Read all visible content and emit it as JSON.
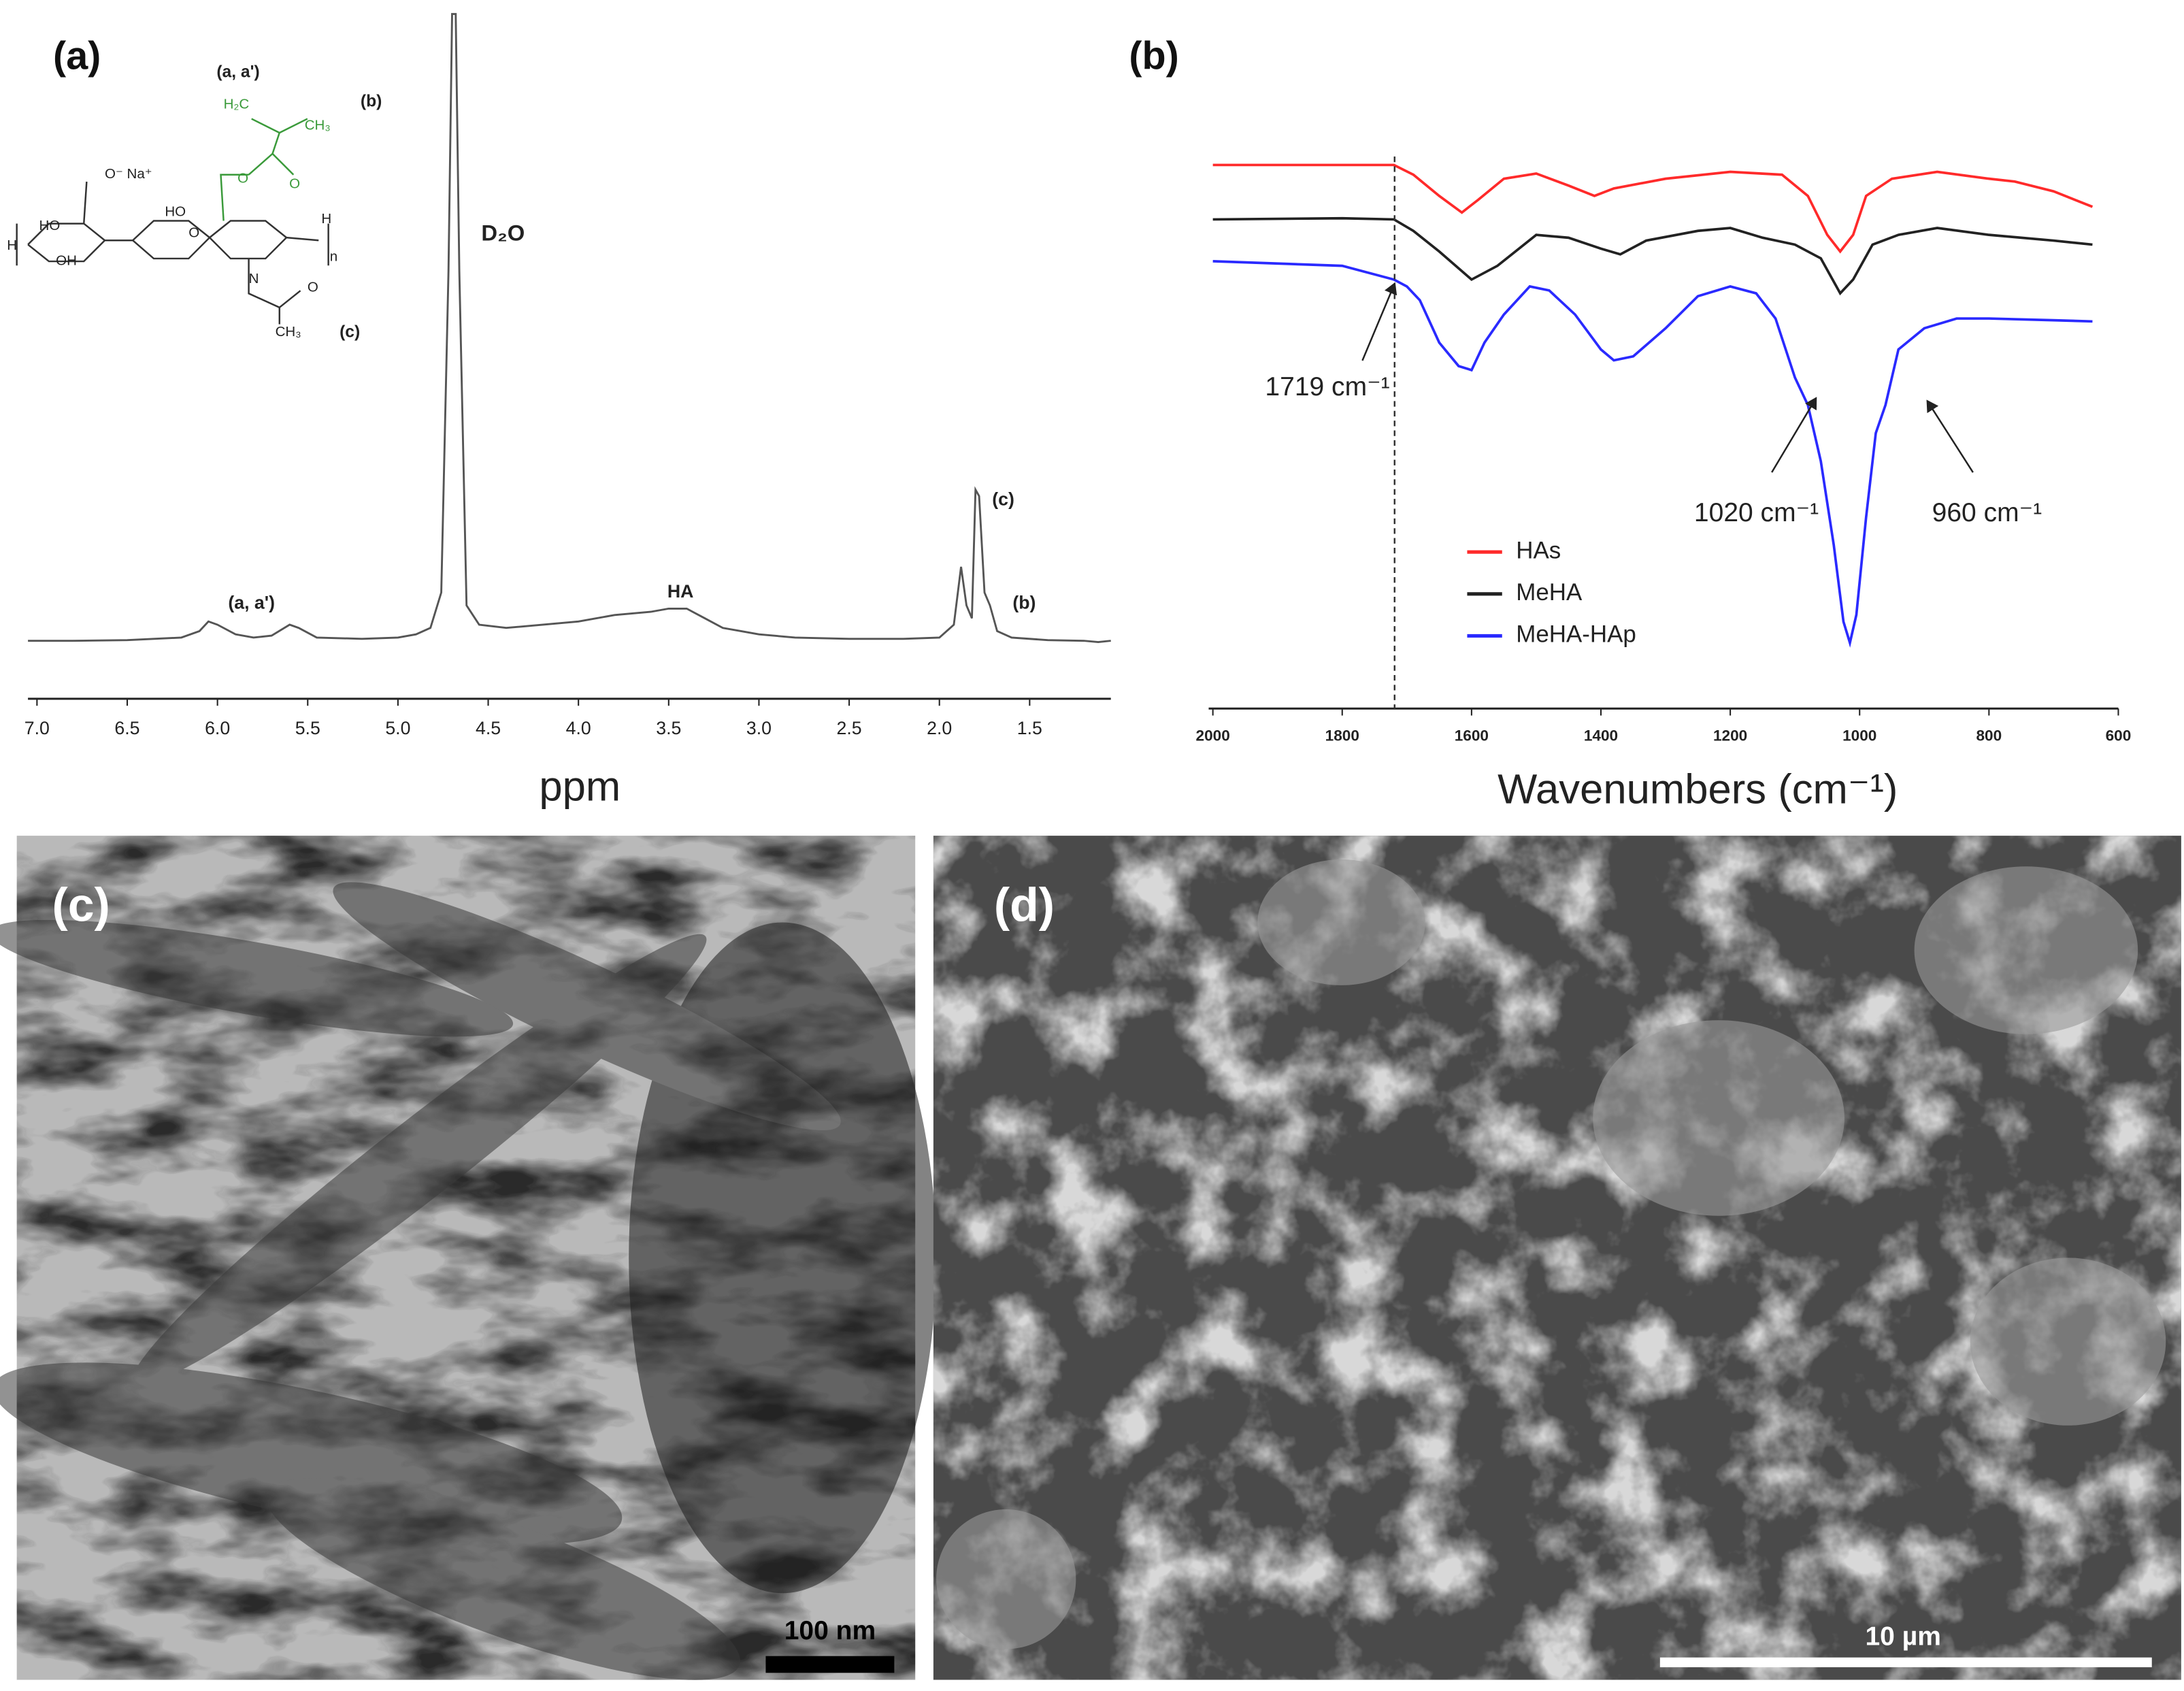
{
  "chart_data": [
    {
      "type": "line",
      "panel_label": "(a)",
      "x_label": "ppm",
      "xlim": [
        7.05,
        1.05
      ],
      "xticks": [
        {
          "value": 7,
          "label": "7.0"
        },
        6.5,
        {
          "value": 6,
          "label": "6.0"
        },
        5.5,
        {
          "value": 5,
          "label": "5.0"
        },
        4.5,
        {
          "value": 4,
          "label": "4.0"
        },
        3.5,
        {
          "value": 3,
          "label": "3.0"
        },
        2.5,
        {
          "value": 2,
          "label": "2.0"
        },
        1.5
      ],
      "ylim": [
        0,
        100
      ],
      "x": [
        7.05,
        6.8,
        6.5,
        6.2,
        6.1,
        6.05,
        6.0,
        5.9,
        5.8,
        5.7,
        5.6,
        5.55,
        5.45,
        5.2,
        5.0,
        4.9,
        4.82,
        4.76,
        4.72,
        4.7,
        4.68,
        4.66,
        4.62,
        4.55,
        4.4,
        4.2,
        4.0,
        3.8,
        3.6,
        3.5,
        3.4,
        3.3,
        3.2,
        3.1,
        3.0,
        2.8,
        2.5,
        2.2,
        2.0,
        1.92,
        1.88,
        1.85,
        1.82,
        1.8,
        1.78,
        1.75,
        1.72,
        1.68,
        1.6,
        1.4,
        1.2,
        1.12,
        1.05
      ],
      "series": [
        {
          "color": "#555555",
          "values": [
            2.5,
            2.5,
            2.6,
            3,
            4,
            5.5,
            5,
            3.5,
            3,
            3.3,
            5,
            4.5,
            3,
            2.8,
            3,
            3.5,
            4.5,
            10,
            60,
            100,
            100,
            60,
            8,
            5,
            4.5,
            5,
            5.5,
            6.5,
            7,
            7.5,
            7.5,
            6,
            4.5,
            4,
            3.5,
            3,
            2.8,
            2.8,
            3,
            5,
            14,
            8,
            6,
            26,
            25,
            10,
            8,
            4,
            3,
            2.6,
            2.5,
            2.3,
            2.5
          ]
        }
      ],
      "annotations": [
        "(a, a')",
        "HA",
        "(c)",
        "(b)",
        "D₂O"
      ],
      "structure_labels": [
        {
          "text": "(a, a')",
          "color": "#222222"
        },
        {
          "text": "(b)",
          "color": "#222222"
        },
        {
          "text": "H₂C",
          "color": "#3a9a3a"
        },
        {
          "text": "CH₃",
          "color": "#3a9a3a"
        },
        {
          "text": "O",
          "color": "#3a9a3a"
        },
        {
          "text": "O",
          "color": "#3a9a3a"
        },
        {
          "text": "O⁻ Na⁺",
          "color": "#222222"
        },
        {
          "text": "HO",
          "color": "#222222"
        },
        {
          "text": "OH",
          "color": "#222222"
        },
        {
          "text": "HO",
          "color": "#222222"
        },
        {
          "text": "O",
          "color": "#222222"
        },
        {
          "text": "N",
          "color": "#222222"
        },
        {
          "text": "O",
          "color": "#222222"
        },
        {
          "text": "CH₃",
          "color": "#222222"
        },
        {
          "text": "(c)",
          "color": "#222222"
        },
        {
          "text": "H",
          "color": "#222222"
        },
        {
          "text": "H",
          "color": "#222222"
        },
        {
          "text": "n",
          "color": "#222222"
        }
      ]
    },
    {
      "type": "line",
      "panel_label": "(b)",
      "x_label": "Wavenumbers (cm⁻¹)",
      "xlim": [
        2000,
        600
      ],
      "xticks": [
        2000,
        1800,
        1600,
        1400,
        1200,
        1000,
        800,
        600
      ],
      "ylim": [
        0,
        100
      ],
      "legend": "lower-left",
      "series": [
        {
          "name": "HAs",
          "color": "#ff2a2a",
          "x": [
            2000,
            1800,
            1720,
            1690,
            1650,
            1615,
            1590,
            1550,
            1500,
            1450,
            1410,
            1380,
            1300,
            1200,
            1120,
            1080,
            1050,
            1030,
            1010,
            990,
            950,
            880,
            800,
            760,
            700,
            640
          ],
          "values": [
            95.6,
            95.6,
            95.6,
            93.9,
            90.2,
            87.3,
            89.5,
            93.2,
            94.1,
            92.0,
            90.2,
            91.5,
            93.2,
            94.4,
            93.9,
            90.2,
            83.4,
            80.5,
            83.4,
            90.2,
            93.2,
            94.4,
            93.2,
            92.7,
            91.0,
            88.3
          ]
        },
        {
          "name": "MeHA",
          "color": "#222222",
          "x": [
            2000,
            1800,
            1720,
            1690,
            1650,
            1600,
            1560,
            1500,
            1450,
            1400,
            1370,
            1330,
            1250,
            1200,
            1150,
            1100,
            1060,
            1030,
            1010,
            980,
            940,
            880,
            800,
            700,
            640
          ],
          "values": [
            86.1,
            86.3,
            86.1,
            84.1,
            80.5,
            75.6,
            78.0,
            83.4,
            82.9,
            81.0,
            80.0,
            82.4,
            84.1,
            84.6,
            82.9,
            81.7,
            79.3,
            73.2,
            75.6,
            81.7,
            83.4,
            84.6,
            83.4,
            82.4,
            81.7
          ]
        },
        {
          "name": "MeHA-HAp",
          "color": "#2a2aff",
          "x": [
            2000,
            1800,
            1720,
            1700,
            1680,
            1650,
            1620,
            1600,
            1580,
            1550,
            1510,
            1480,
            1440,
            1400,
            1380,
            1350,
            1300,
            1250,
            1200,
            1160,
            1130,
            1100,
            1080,
            1060,
            1040,
            1025,
            1015,
            1005,
            990,
            975,
            960,
            940,
            900,
            850,
            800,
            700,
            640
          ],
          "values": [
            78.8,
            78.0,
            75.6,
            74.4,
            72.0,
            64.6,
            60.5,
            59.8,
            64.6,
            69.5,
            74.4,
            73.7,
            69.5,
            63.4,
            61.5,
            62.2,
            67.1,
            72.7,
            74.4,
            73.2,
            68.8,
            58.5,
            53.7,
            43.9,
            29.3,
            15.9,
            12.2,
            17.1,
            34.1,
            48.8,
            53.7,
            63.4,
            67.1,
            68.8,
            68.8,
            68.5,
            68.3
          ]
        }
      ],
      "annotations": [
        {
          "value": 1719,
          "label": "1719 cm⁻¹"
        },
        {
          "value": 1020,
          "label": "1020 cm⁻¹"
        },
        {
          "value": 960,
          "label": "960 cm⁻¹"
        }
      ]
    }
  ],
  "images": [
    {
      "panel_label": "(c)",
      "scale_bar": "100 nm"
    },
    {
      "panel_label": "(d)",
      "scale_bar": "10 µm"
    }
  ]
}
